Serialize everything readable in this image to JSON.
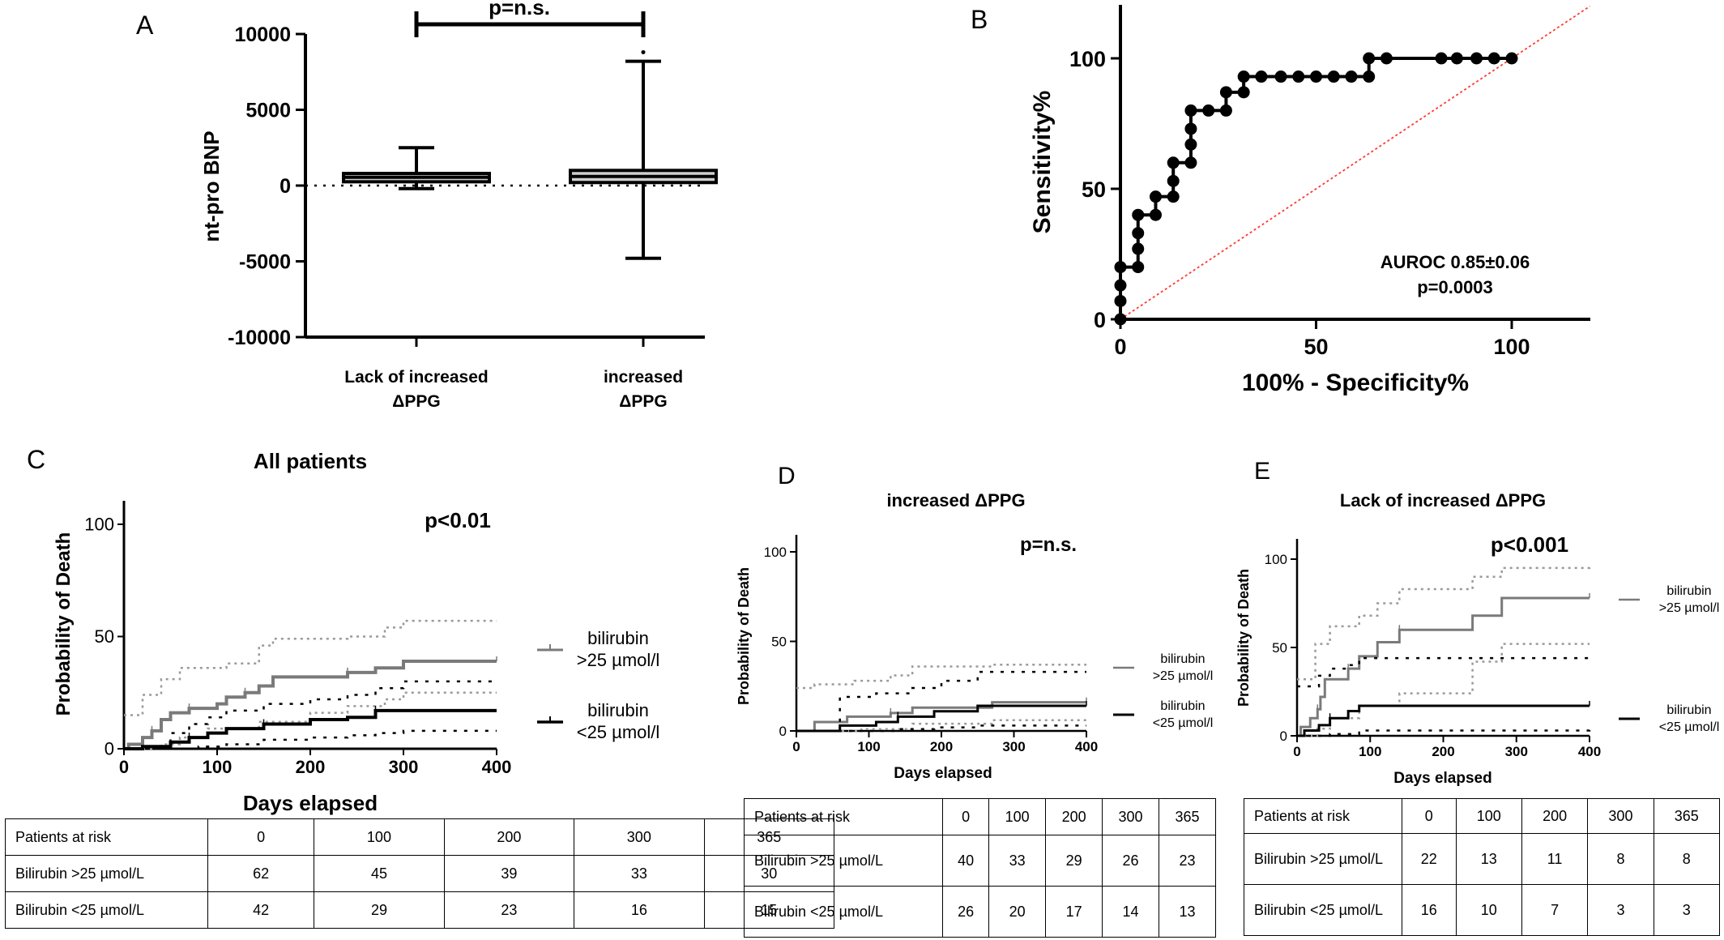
{
  "panels": {
    "A": {
      "letter": "A",
      "ylabel": "nt-pro BNP",
      "yticks": [
        10000,
        5000,
        0,
        -5000,
        -10000
      ],
      "ylim": [
        -10000,
        10000
      ],
      "categories": [
        [
          "Lack of increased",
          "ΔPPG"
        ],
        [
          "increased",
          "ΔPPG"
        ]
      ],
      "significance": "p=n.s."
    },
    "B": {
      "letter": "B",
      "ylabel": "Sensitivity%",
      "xlabel": "100% - Specificity%",
      "xticks": [
        0,
        50,
        100
      ],
      "yticks": [
        0,
        50,
        100
      ],
      "annotation": [
        "AUROC 0.85±0.06",
        "p=0.0003"
      ]
    },
    "C": {
      "letter": "C",
      "title": "All patients",
      "pvalue": "p<0.01",
      "ylabel": "Probability of Death",
      "xlabel": "Days elapsed",
      "xticks": [
        0,
        100,
        200,
        300,
        400
      ],
      "yticks": [
        0,
        50,
        100
      ],
      "legend": [
        [
          "bilirubin",
          ">25 µmol/l"
        ],
        [
          "bilirubin",
          "<25 µmol/l"
        ]
      ]
    },
    "D": {
      "letter": "D",
      "title": "increased ΔPPG",
      "pvalue": "p=n.s.",
      "ylabel": "Probability of Death",
      "xlabel": "Days elapsed",
      "xticks": [
        0,
        100,
        200,
        300,
        400
      ],
      "yticks": [
        0,
        50,
        100
      ],
      "legend": [
        [
          "bilirubin",
          ">25 µmol/l"
        ],
        [
          "bilirubin",
          "<25 µmol/l"
        ]
      ]
    },
    "E": {
      "letter": "E",
      "title": "Lack of increased ΔPPG",
      "pvalue": "p<0.001",
      "ylabel": "Probability of Death",
      "xlabel": "Days elapsed",
      "xticks": [
        0,
        100,
        200,
        300,
        400
      ],
      "yticks": [
        0,
        50,
        100
      ],
      "legend": [
        [
          "bilirubin",
          ">25 µmol/l"
        ],
        [
          "bilirubin",
          "<25 µmol/l"
        ]
      ]
    }
  },
  "tables": {
    "C": {
      "header": [
        "Patients at risk",
        "0",
        "100",
        "200",
        "300",
        "365"
      ],
      "rows": [
        [
          "Bilirubin >25 µmol/L",
          "62",
          "45",
          "39",
          "33",
          "30"
        ],
        [
          "Bilirubin <25 µmol/L",
          "42",
          "29",
          "23",
          "16",
          "15"
        ]
      ]
    },
    "D": {
      "header": [
        "Patients at risk",
        "0",
        "100",
        "200",
        "300",
        "365"
      ],
      "rows": [
        [
          "Bilirubin >25 µmol/L",
          "40",
          "33",
          "29",
          "26",
          "23"
        ],
        [
          "Bilirubin <25 µmol/L",
          "26",
          "20",
          "17",
          "14",
          "13"
        ]
      ]
    },
    "E": {
      "header": [
        "Patients at risk",
        "0",
        "100",
        "200",
        "300",
        "365"
      ],
      "rows": [
        [
          "Bilirubin >25 µmol/L",
          "22",
          "13",
          "11",
          "8",
          "8"
        ],
        [
          "Bilirubin <25 µmol/L",
          "16",
          "10",
          "7",
          "3",
          "3"
        ]
      ]
    }
  },
  "colors": {
    "high": "#7a7a7a",
    "low": "#000000",
    "ref": "#ff3b30"
  },
  "chart_data": [
    {
      "type": "box",
      "panel": "A",
      "categories": [
        "Lack of increased ΔPPG",
        "increased ΔPPG"
      ],
      "boxes": [
        {
          "whisker_low": -200,
          "q1": 250,
          "median": 550,
          "q3": 800,
          "whisker_high": 2500
        },
        {
          "whisker_low": -4800,
          "q1": 200,
          "median": 600,
          "q3": 1000,
          "whisker_high": 8200,
          "outliers": [
            8800
          ]
        }
      ],
      "ylim": [
        -10000,
        10000
      ]
    },
    {
      "type": "line",
      "panel": "B",
      "series": [
        {
          "points": [
            [
              0,
              0
            ],
            [
              0,
              7
            ],
            [
              0,
              13
            ],
            [
              0,
              20
            ],
            [
              4.5,
              20
            ],
            [
              4.5,
              27
            ],
            [
              4.5,
              33
            ],
            [
              4.5,
              40
            ],
            [
              9,
              40
            ],
            [
              9,
              47
            ],
            [
              13.5,
              47
            ],
            [
              13.5,
              53
            ],
            [
              13.5,
              60
            ],
            [
              18,
              60
            ],
            [
              18,
              67
            ],
            [
              18,
              73
            ],
            [
              18,
              80
            ],
            [
              22.5,
              80
            ],
            [
              27,
              80
            ],
            [
              27,
              87
            ],
            [
              31.5,
              87
            ],
            [
              31.5,
              93
            ],
            [
              36,
              93
            ],
            [
              41,
              93
            ],
            [
              45.5,
              93
            ],
            [
              50,
              93
            ],
            [
              54.5,
              93
            ],
            [
              59,
              93
            ],
            [
              63.5,
              93
            ],
            [
              63.5,
              100
            ],
            [
              68,
              100
            ],
            [
              82,
              100
            ],
            [
              86,
              100
            ],
            [
              91,
              100
            ],
            [
              95.5,
              100
            ],
            [
              100,
              100
            ]
          ]
        }
      ],
      "xlim": [
        0,
        120
      ],
      "ylim": [
        0,
        120
      ]
    },
    {
      "type": "line",
      "panel": "C",
      "series": [
        {
          "key": "high",
          "steps": [
            [
              0,
              0
            ],
            [
              5,
              2
            ],
            [
              20,
              5
            ],
            [
              30,
              8
            ],
            [
              40,
              13
            ],
            [
              50,
              16
            ],
            [
              70,
              18
            ],
            [
              100,
              20
            ],
            [
              110,
              23
            ],
            [
              130,
              25
            ],
            [
              145,
              28
            ],
            [
              160,
              32
            ],
            [
              240,
              34
            ],
            [
              270,
              36
            ],
            [
              300,
              39
            ],
            [
              400,
              39
            ]
          ],
          "ci_upper": [
            [
              0,
              15
            ],
            [
              20,
              24
            ],
            [
              40,
              31
            ],
            [
              60,
              36
            ],
            [
              110,
              38
            ],
            [
              145,
              46
            ],
            [
              160,
              49
            ],
            [
              200,
              49
            ],
            [
              240,
              50
            ],
            [
              280,
              54
            ],
            [
              300,
              57
            ],
            [
              400,
              57
            ]
          ],
          "ci_lower": [
            [
              0,
              0
            ],
            [
              40,
              2
            ],
            [
              60,
              5
            ],
            [
              90,
              9
            ],
            [
              145,
              12
            ],
            [
              200,
              16
            ],
            [
              240,
              19
            ],
            [
              280,
              22
            ],
            [
              300,
              25
            ],
            [
              400,
              25
            ]
          ]
        },
        {
          "key": "low",
          "steps": [
            [
              0,
              0
            ],
            [
              20,
              1
            ],
            [
              50,
              3
            ],
            [
              70,
              5
            ],
            [
              90,
              7
            ],
            [
              110,
              9
            ],
            [
              150,
              11
            ],
            [
              200,
              13
            ],
            [
              240,
              14
            ],
            [
              270,
              17
            ],
            [
              400,
              17
            ]
          ],
          "ci_upper": [
            [
              0,
              0
            ],
            [
              50,
              7
            ],
            [
              70,
              11
            ],
            [
              90,
              14
            ],
            [
              110,
              17
            ],
            [
              150,
              20
            ],
            [
              200,
              22
            ],
            [
              240,
              24
            ],
            [
              270,
              27
            ],
            [
              300,
              30
            ],
            [
              400,
              30
            ]
          ],
          "ci_lower": [
            [
              0,
              0
            ],
            [
              80,
              1
            ],
            [
              110,
              2
            ],
            [
              150,
              4
            ],
            [
              200,
              5
            ],
            [
              240,
              6
            ],
            [
              270,
              7
            ],
            [
              300,
              8
            ],
            [
              400,
              8
            ]
          ]
        }
      ],
      "xlim": [
        0,
        400
      ],
      "ylim": [
        0,
        110
      ]
    },
    {
      "type": "line",
      "panel": "D",
      "series": [
        {
          "key": "high",
          "steps": [
            [
              0,
              0
            ],
            [
              25,
              5
            ],
            [
              70,
              8
            ],
            [
              130,
              10
            ],
            [
              160,
              13
            ],
            [
              270,
              16
            ],
            [
              400,
              16
            ]
          ],
          "ci_upper": [
            [
              0,
              24
            ],
            [
              25,
              26
            ],
            [
              80,
              28
            ],
            [
              130,
              31
            ],
            [
              160,
              36
            ],
            [
              270,
              37
            ],
            [
              400,
              37
            ]
          ],
          "ci_lower": [
            [
              0,
              0
            ],
            [
              90,
              1
            ],
            [
              160,
              4
            ],
            [
              270,
              6
            ],
            [
              400,
              6
            ]
          ]
        },
        {
          "key": "low",
          "steps": [
            [
              0,
              0
            ],
            [
              60,
              3
            ],
            [
              110,
              5
            ],
            [
              140,
              8
            ],
            [
              190,
              11
            ],
            [
              250,
              14
            ],
            [
              400,
              14
            ]
          ],
          "ci_upper": [
            [
              0,
              0
            ],
            [
              60,
              19
            ],
            [
              110,
              21
            ],
            [
              160,
              24
            ],
            [
              200,
              28
            ],
            [
              250,
              33
            ],
            [
              400,
              33
            ]
          ],
          "ci_lower": [
            [
              0,
              0
            ],
            [
              140,
              1
            ],
            [
              190,
              2
            ],
            [
              250,
              3
            ],
            [
              400,
              3
            ]
          ]
        }
      ],
      "xlim": [
        0,
        400
      ],
      "ylim": [
        0,
        110
      ]
    },
    {
      "type": "line",
      "panel": "E",
      "series": [
        {
          "key": "high",
          "steps": [
            [
              0,
              0
            ],
            [
              5,
              5
            ],
            [
              18,
              10
            ],
            [
              28,
              15
            ],
            [
              32,
              22
            ],
            [
              38,
              32
            ],
            [
              70,
              38
            ],
            [
              85,
              45
            ],
            [
              110,
              53
            ],
            [
              140,
              60
            ],
            [
              240,
              68
            ],
            [
              280,
              78
            ],
            [
              400,
              78
            ]
          ],
          "ci_upper": [
            [
              0,
              32
            ],
            [
              25,
              52
            ],
            [
              45,
              62
            ],
            [
              85,
              68
            ],
            [
              110,
              75
            ],
            [
              140,
              83
            ],
            [
              240,
              90
            ],
            [
              280,
              95
            ],
            [
              400,
              96
            ]
          ],
          "ci_lower": [
            [
              0,
              0
            ],
            [
              28,
              4
            ],
            [
              45,
              10
            ],
            [
              85,
              17
            ],
            [
              140,
              24
            ],
            [
              240,
              42
            ],
            [
              280,
              52
            ],
            [
              400,
              52
            ]
          ]
        },
        {
          "key": "low",
          "steps": [
            [
              0,
              0
            ],
            [
              10,
              3
            ],
            [
              30,
              6
            ],
            [
              45,
              10
            ],
            [
              70,
              14
            ],
            [
              85,
              17
            ],
            [
              400,
              17
            ]
          ],
          "ci_upper": [
            [
              0,
              28
            ],
            [
              30,
              34
            ],
            [
              45,
              38
            ],
            [
              70,
              40
            ],
            [
              85,
              44
            ],
            [
              400,
              44
            ]
          ],
          "ci_lower": [
            [
              0,
              0
            ],
            [
              45,
              1
            ],
            [
              85,
              3
            ],
            [
              400,
              5
            ]
          ]
        }
      ],
      "xlim": [
        0,
        400
      ],
      "ylim": [
        0,
        110
      ]
    }
  ]
}
